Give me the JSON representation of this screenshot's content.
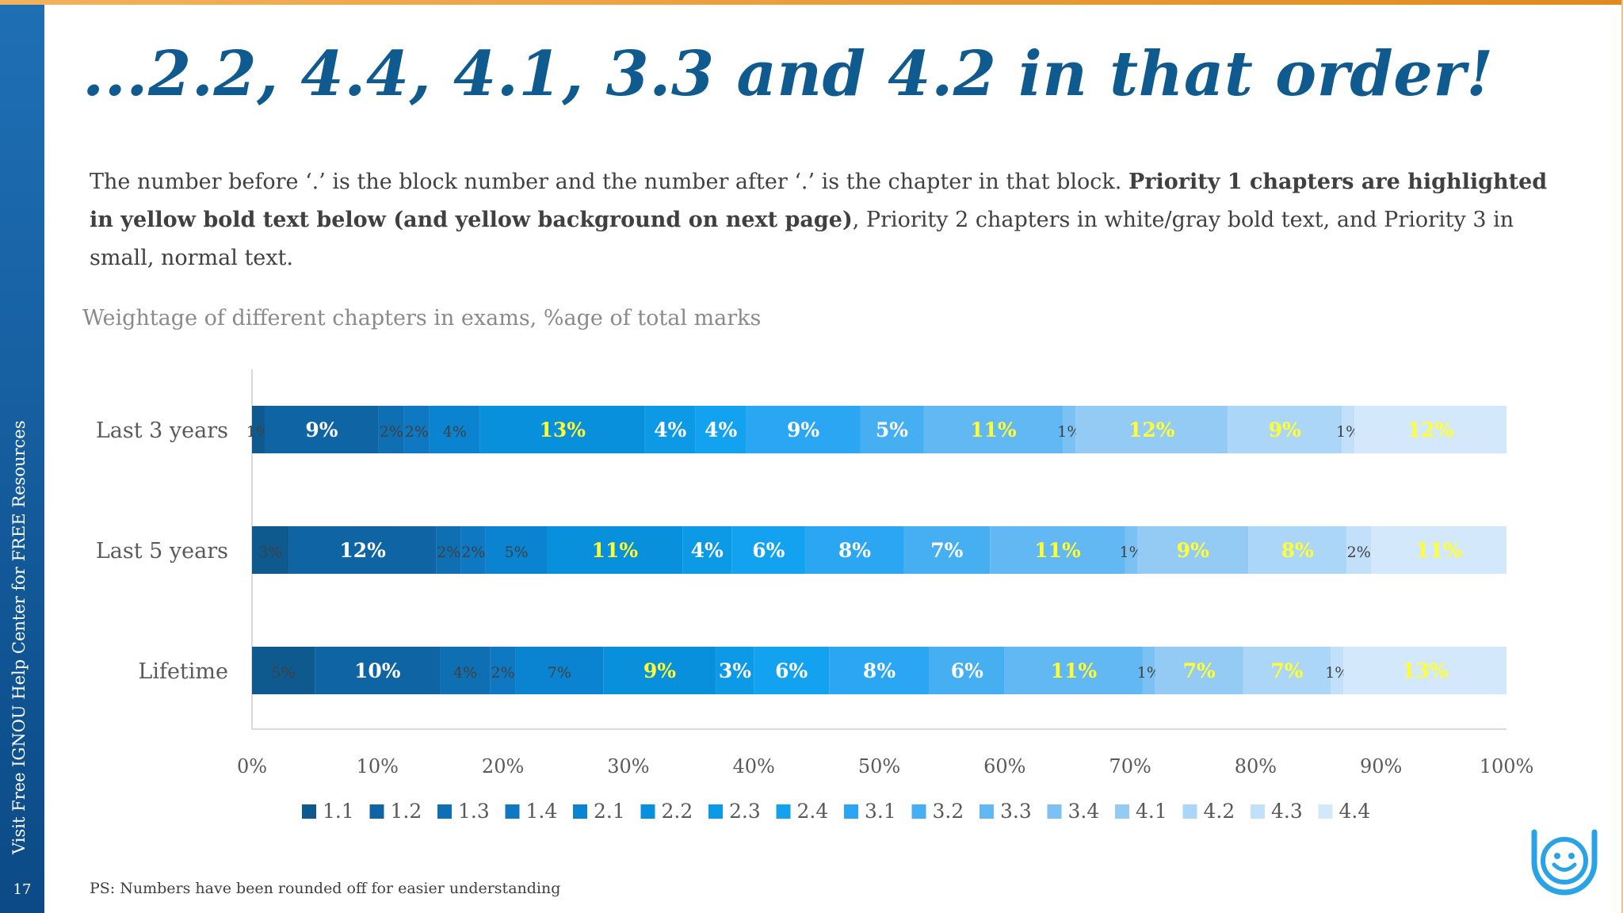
{
  "slide": {
    "title": "...2.2, 4.4, 4.1, 3.3 and 4.2 in that order!",
    "side_text": "Visit Free IGNOU Help Center for FREE Resources",
    "page_number": "17",
    "desc_plain_1": "The number before ‘.’ is the block number and the number after ‘.’ is the chapter in that block. ",
    "desc_bold": "Priority 1 chapters are highlighted in yellow bold text below (and yellow background on next page)",
    "desc_plain_2": ", Priority 2 chapters in white/gray bold text, and Priority 3 in small, normal text.",
    "footnote": "PS:  Numbers have been rounded off for easier understanding",
    "colors": {
      "title": "#0f5a8e",
      "side_bar": "#1668a8",
      "priority1_label": "#ffff33",
      "priority2_label": "#ffffff",
      "priority3_label": "#404040"
    }
  },
  "chart_data": {
    "type": "bar",
    "orientation": "horizontal-stacked-100",
    "title": "Weightage of different chapters in exams, %age of total marks",
    "categories": [
      "Last 3 years",
      "Last 5 years",
      "Lifetime"
    ],
    "xlim": [
      0,
      100
    ],
    "x_ticks": [
      "0%",
      "10%",
      "20%",
      "30%",
      "40%",
      "50%",
      "60%",
      "70%",
      "80%",
      "90%",
      "100%"
    ],
    "legend_position": "bottom",
    "series": [
      {
        "name": "1.1",
        "values": [
          1,
          3,
          5
        ],
        "color": "#0e5a8f",
        "priority": [
          3,
          3,
          3
        ]
      },
      {
        "name": "1.2",
        "values": [
          9,
          12,
          10
        ],
        "color": "#0f65a3",
        "priority": [
          2,
          2,
          2
        ]
      },
      {
        "name": "1.3",
        "values": [
          2,
          2,
          4
        ],
        "color": "#0f6fb3",
        "priority": [
          3,
          3,
          3
        ]
      },
      {
        "name": "1.4",
        "values": [
          2,
          2,
          2
        ],
        "color": "#0e78c2",
        "priority": [
          3,
          3,
          3
        ]
      },
      {
        "name": "2.1",
        "values": [
          4,
          5,
          7
        ],
        "color": "#0a84d1",
        "priority": [
          3,
          3,
          3
        ]
      },
      {
        "name": "2.2",
        "values": [
          13,
          11,
          9
        ],
        "color": "#0890dc",
        "priority": [
          1,
          1,
          1
        ]
      },
      {
        "name": "2.3",
        "values": [
          4,
          4,
          3
        ],
        "color": "#0c99e6",
        "priority": [
          2,
          2,
          2
        ]
      },
      {
        "name": "2.4",
        "values": [
          4,
          6,
          6
        ],
        "color": "#12a2ef",
        "priority": [
          2,
          2,
          2
        ]
      },
      {
        "name": "3.1",
        "values": [
          9,
          8,
          8
        ],
        "color": "#2aa6f2",
        "priority": [
          2,
          2,
          2
        ]
      },
      {
        "name": "3.2",
        "values": [
          5,
          7,
          6
        ],
        "color": "#46aff2",
        "priority": [
          2,
          2,
          2
        ]
      },
      {
        "name": "3.3",
        "values": [
          11,
          11,
          11
        ],
        "color": "#62b8f2",
        "priority": [
          1,
          1,
          1
        ]
      },
      {
        "name": "3.4",
        "values": [
          1,
          1,
          1
        ],
        "color": "#7bc1f3",
        "priority": [
          3,
          3,
          3
        ]
      },
      {
        "name": "4.1",
        "values": [
          12,
          9,
          7
        ],
        "color": "#94cbf5",
        "priority": [
          1,
          1,
          1
        ]
      },
      {
        "name": "4.2",
        "values": [
          9,
          8,
          7
        ],
        "color": "#acd6f7",
        "priority": [
          1,
          1,
          1
        ]
      },
      {
        "name": "4.3",
        "values": [
          1,
          2,
          1
        ],
        "color": "#c2e0f9",
        "priority": [
          3,
          3,
          3
        ]
      },
      {
        "name": "4.4",
        "values": [
          12,
          11,
          13
        ],
        "color": "#d3e8fb",
        "priority": [
          1,
          1,
          1
        ]
      }
    ]
  }
}
